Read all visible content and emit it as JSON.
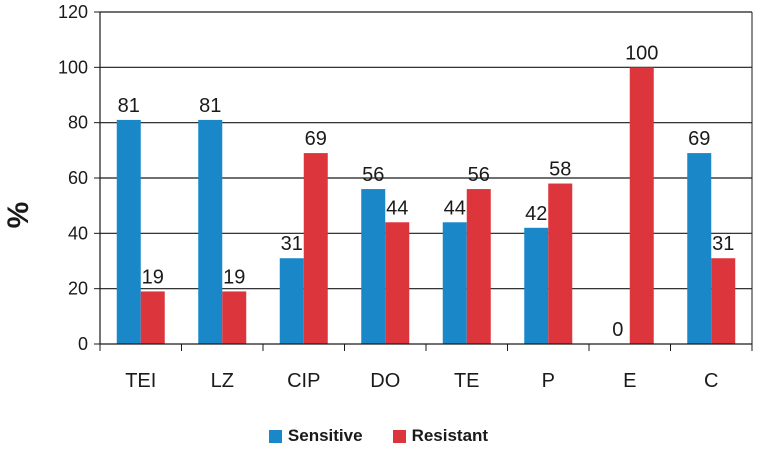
{
  "chart_data": {
    "type": "bar",
    "ylabel": "%",
    "xlabel": "",
    "ylim": [
      0,
      120
    ],
    "yticks": [
      "0",
      "20",
      "40",
      "60",
      "80",
      "100",
      "120"
    ],
    "categories": [
      "TEI",
      "LZ",
      "CIP",
      "DO",
      "TE",
      "P",
      "E",
      "C"
    ],
    "series": [
      {
        "name": "Sensitive",
        "color": "#1a87c9",
        "values": [
          81,
          81,
          31,
          56,
          44,
          42,
          0,
          69
        ]
      },
      {
        "name": "Resistant",
        "color": "#dc353b",
        "values": [
          19,
          19,
          69,
          44,
          56,
          58,
          100,
          31
        ]
      }
    ],
    "grid": true,
    "legend_position": "bottom"
  }
}
